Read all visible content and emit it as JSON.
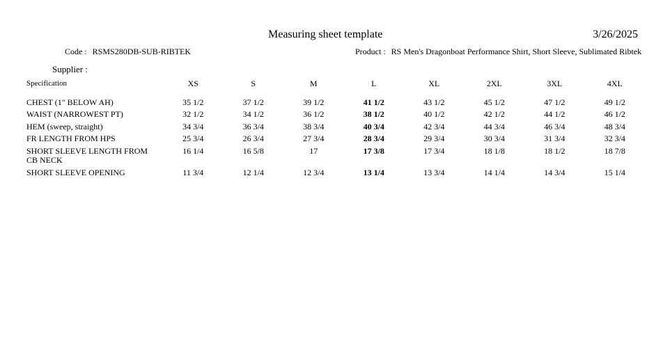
{
  "header": {
    "title": "Measuring sheet template",
    "date": "3/26/2025",
    "code_label": "Code :",
    "code_value": "RSMS280DB-SUB-RIBTEK",
    "product_label": "Product :",
    "product_value": "RS Men's Dragonboat Performance Shirt, Short Sleeve, Sublimated Ribtek",
    "supplier_label": "Supplier :"
  },
  "table": {
    "spec_header": "Specification",
    "size_headers": [
      "XS",
      "S",
      "M",
      "L",
      "XL",
      "2XL",
      "3XL",
      "4XL"
    ],
    "bold_column": "L",
    "rows": [
      {
        "spec": "CHEST (1\" BELOW AH)",
        "values": [
          "35 1/2",
          "37 1/2",
          "39 1/2",
          "41 1/2",
          "43 1/2",
          "45 1/2",
          "47 1/2",
          "49 1/2"
        ]
      },
      {
        "spec": "WAIST (NARROWEST PT)",
        "values": [
          "32 1/2",
          "34 1/2",
          "36 1/2",
          "38 1/2",
          "40 1/2",
          "42 1/2",
          "44 1/2",
          "46 1/2"
        ]
      },
      {
        "spec": "HEM (sweep, straight)",
        "values": [
          "34 3/4",
          "36 3/4",
          "38 3/4",
          "40 3/4",
          "42 3/4",
          "44 3/4",
          "46 3/4",
          "48 3/4"
        ]
      },
      {
        "spec": "FR LENGTH FROM HPS",
        "values": [
          "25 3/4",
          "26 3/4",
          "27 3/4",
          "28 3/4",
          "29 3/4",
          "30 3/4",
          "31 3/4",
          "32 3/4"
        ]
      },
      {
        "spec": "SHORT SLEEVE LENGTH FROM CB NECK",
        "values": [
          "16 1/4",
          "16 5/8",
          "17",
          "17 3/8",
          "17 3/4",
          "18 1/8",
          "18 1/2",
          "18 7/8"
        ]
      },
      {
        "spec": "SHORT SLEEVE OPENING",
        "values": [
          "11 3/4",
          "12 1/4",
          "12 3/4",
          "13 1/4",
          "13 3/4",
          "14 1/4",
          "14 3/4",
          "15 1/4"
        ]
      }
    ]
  }
}
